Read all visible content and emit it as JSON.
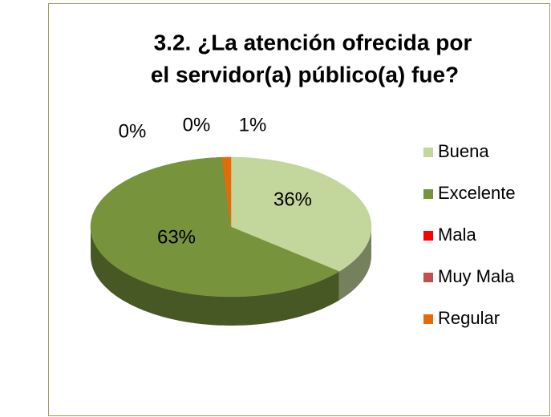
{
  "chart_data": {
    "type": "pie",
    "title": "3.2. ¿La atención ofrecida por el servidor(a) público(a) fue?",
    "categories": [
      "Buena",
      "Excelente",
      "Mala",
      "Muy Mala",
      "Regular"
    ],
    "values": [
      36,
      63,
      0,
      0,
      1
    ],
    "value_labels": [
      "36%",
      "63%",
      "0%",
      "0%",
      "1%"
    ],
    "colors": [
      "#c3d69b",
      "#77933c",
      "#ff0000",
      "#c0504d",
      "#e36c09"
    ],
    "legend": "right"
  }
}
